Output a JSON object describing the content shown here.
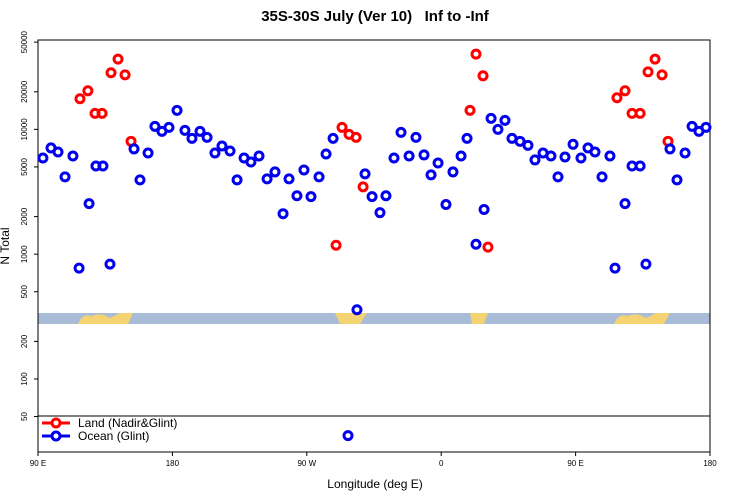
{
  "chart_data": {
    "type": "scatter",
    "title": "35S-30S July (Ver 10)   Inf to -Inf",
    "xlabel": "Longitude (deg E)",
    "ylabel": "N Total",
    "xlim": [
      90,
      540
    ],
    "xticks": [
      {
        "value": 90,
        "label": "90 E"
      },
      180,
      {
        "value": 270,
        "label": "90 W"
      },
      {
        "value": 360,
        "label": "0"
      },
      {
        "value": 450,
        "label": "90 E"
      },
      {
        "value": 540,
        "label": "180"
      }
    ],
    "ylim": [
      26,
      52000
    ],
    "log_y": true,
    "yticks": [
      50,
      100,
      200,
      500,
      1000,
      2000,
      5000,
      10000,
      20000,
      50000
    ],
    "legend": "bottom left",
    "series": [
      {
        "name": "Land (Nadir&Glint)",
        "color": "#ff0000",
        "x": [
          118.1,
          123.4,
          128.2,
          132.9,
          138.9,
          143.6,
          148.3,
          152.3,
          289.6,
          293.6,
          298.3,
          303.0,
          307.7,
          379.3,
          383.3,
          388.0,
          391.3,
          477.7,
          483.1,
          487.8,
          493.2,
          498.5,
          503.2,
          507.9,
          511.9
        ],
        "values": [
          17580,
          20370,
          13430,
          13430,
          28400,
          36550,
          27350,
          8020,
          1180,
          10380,
          9120,
          8630,
          3460,
          14190,
          40090,
          26860,
          1138,
          17910,
          20370,
          13430,
          13430,
          28900,
          36550,
          27350,
          8020
        ]
      },
      {
        "name": "Ocean (Glint)",
        "color": "#0000ee",
        "x": [
          93.3,
          98.7,
          103.4,
          108.1,
          113.4,
          117.5,
          124.2,
          128.8,
          133.5,
          138.2,
          154.3,
          158.3,
          163.7,
          168.3,
          173.0,
          177.7,
          183.1,
          188.4,
          193.1,
          198.5,
          203.2,
          208.5,
          213.2,
          218.6,
          223.3,
          228.0,
          232.6,
          238.0,
          243.4,
          248.7,
          254.1,
          258.1,
          263.4,
          268.1,
          272.8,
          278.2,
          282.9,
          287.6,
          303.6,
          309.0,
          313.7,
          319.0,
          323.0,
          328.4,
          333.1,
          338.5,
          343.1,
          348.5,
          353.2,
          357.9,
          363.2,
          367.9,
          373.3,
          377.3,
          383.3,
          388.7,
          393.4,
          398.0,
          402.7,
          407.4,
          412.8,
          418.1,
          422.8,
          428.2,
          433.5,
          438.2,
          442.9,
          448.3,
          453.6,
          458.3,
          463.0,
          467.7,
          473.0,
          476.4,
          483.1,
          487.8,
          493.2,
          497.1,
          513.2,
          517.9,
          523.3,
          528.0,
          532.6,
          537.3,
          297.6
        ],
        "values": [
          5900,
          7100,
          6590,
          4160,
          6120,
          773,
          2540,
          5090,
          5090,
          832,
          6970,
          3940,
          6470,
          10570,
          9640,
          10380,
          14190,
          9820,
          8470,
          9640,
          8630,
          6470,
          7360,
          6710,
          3940,
          5900,
          5480,
          6120,
          4010,
          4560,
          2110,
          4010,
          2940,
          4730,
          2890,
          4160,
          6350,
          8470,
          359,
          4400,
          2890,
          2150,
          2940,
          5900,
          9460,
          6120,
          8630,
          6240,
          4320,
          5380,
          2500,
          4560,
          6120,
          8470,
          1200,
          2280,
          12250,
          10000,
          11800,
          8470,
          8020,
          7450,
          5690,
          6470,
          6120,
          4160,
          6010,
          7590,
          5900,
          7100,
          6590,
          4160,
          6120,
          773,
          2540,
          5090,
          5090,
          832,
          6970,
          3940,
          6470,
          10570,
          9640,
          10380,
          35.2
        ]
      }
    ]
  }
}
